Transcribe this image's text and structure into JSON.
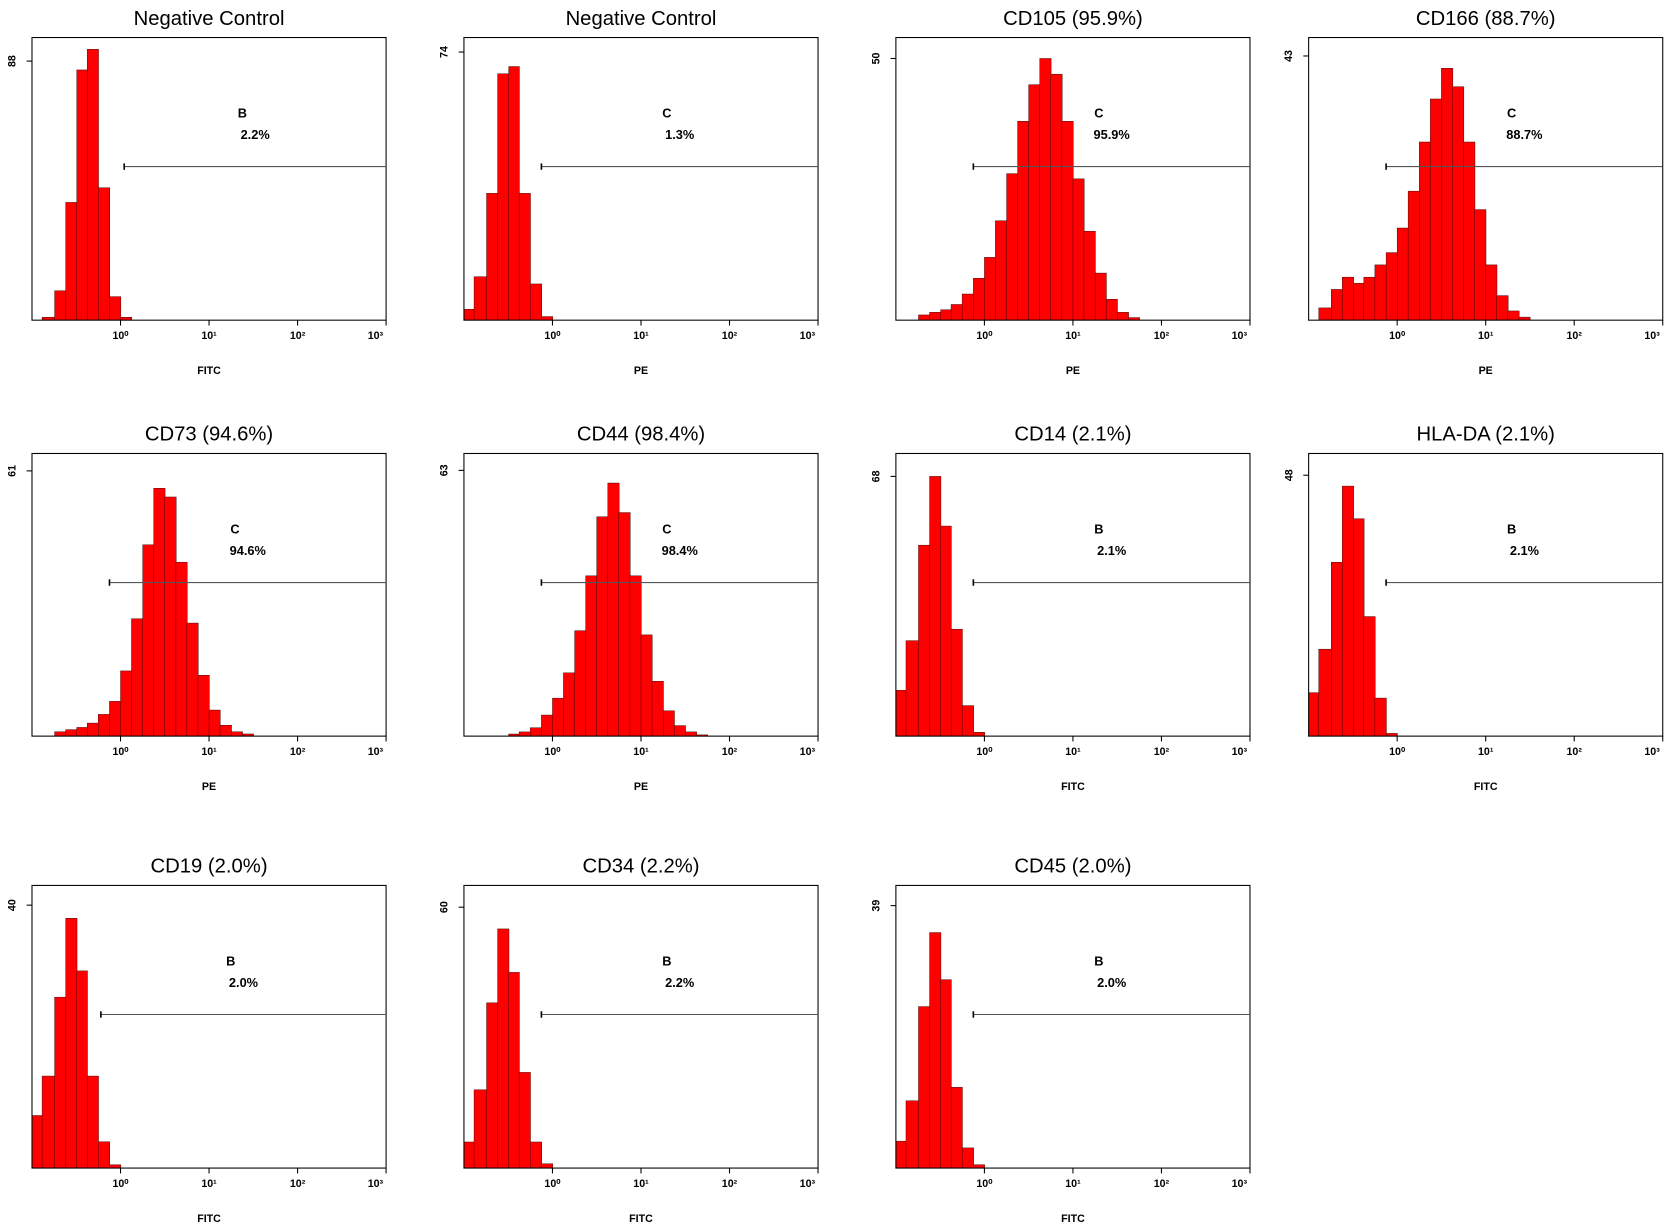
{
  "chart_data": [
    {
      "type": "histogram",
      "title": "Negative Control",
      "x_label": "FITC",
      "log_x": true,
      "color": "#ff0000",
      "xlim": [
        0.1,
        1000
      ],
      "xticks": [
        {
          "value": 1,
          "label": "10⁰"
        },
        {
          "value": 10,
          "label": "10¹"
        },
        {
          "value": 100,
          "label": "10²"
        },
        {
          "value": 1000,
          "label": "10³"
        }
      ],
      "ylim": [
        0,
        96
      ],
      "yticks": [
        88
      ],
      "bins": [
        0.13,
        0.18,
        0.24,
        0.32,
        0.42,
        0.56,
        0.75,
        1,
        1.33
      ],
      "values": [
        1,
        10,
        40,
        85,
        92,
        45,
        8,
        1
      ],
      "gate": {
        "name": "B",
        "start": 1.1,
        "value": 2.2,
        "label": "2.2%"
      }
    },
    {
      "type": "histogram",
      "title": "Negative Control",
      "x_label": "PE",
      "log_x": true,
      "color": "#ff0000",
      "xlim": [
        0.1,
        1000
      ],
      "xticks": [
        {
          "value": 1,
          "label": "10⁰"
        },
        {
          "value": 10,
          "label": "10¹"
        },
        {
          "value": 100,
          "label": "10²"
        },
        {
          "value": 1000,
          "label": "10³"
        }
      ],
      "ylim": [
        0,
        78
      ],
      "yticks": [
        74
      ],
      "bins": [
        0.1,
        0.13,
        0.18,
        0.24,
        0.32,
        0.42,
        0.56,
        0.75,
        1
      ],
      "values": [
        3,
        12,
        35,
        68,
        70,
        35,
        10,
        1
      ],
      "gate": {
        "name": "C",
        "start": 0.75,
        "value": 1.3,
        "label": "1.3%"
      }
    },
    {
      "type": "histogram",
      "title": "CD105 (95.9%)",
      "x_label": "PE",
      "log_x": true,
      "color": "#ff0000",
      "xlim": [
        0.1,
        1000
      ],
      "xticks": [
        {
          "value": 1,
          "label": "10⁰"
        },
        {
          "value": 10,
          "label": "10¹"
        },
        {
          "value": 100,
          "label": "10²"
        },
        {
          "value": 1000,
          "label": "10³"
        }
      ],
      "ylim": [
        0,
        54
      ],
      "yticks": [
        50
      ],
      "bins": [
        0.18,
        0.24,
        0.32,
        0.42,
        0.56,
        0.75,
        1,
        1.33,
        1.78,
        2.37,
        3.16,
        4.22,
        5.62,
        7.5,
        10,
        13.3,
        17.8,
        23.7,
        31.6,
        42.2,
        56.2
      ],
      "values": [
        1,
        1.5,
        2,
        3,
        5,
        8,
        12,
        19,
        28,
        38,
        45,
        50,
        47,
        38,
        27,
        17,
        9,
        4,
        1.5,
        0.5
      ],
      "gate": {
        "name": "C",
        "start": 0.75,
        "value": 95.9,
        "label": "95.9%"
      }
    },
    {
      "type": "histogram",
      "title": "CD166 (88.7%)",
      "x_label": "PE",
      "log_x": true,
      "color": "#ff0000",
      "xlim": [
        0.1,
        1000
      ],
      "xticks": [
        {
          "value": 1,
          "label": "10⁰"
        },
        {
          "value": 10,
          "label": "10¹"
        },
        {
          "value": 100,
          "label": "10²"
        },
        {
          "value": 1000,
          "label": "10³"
        }
      ],
      "ylim": [
        0,
        46
      ],
      "yticks": [
        43
      ],
      "bins": [
        0.13,
        0.18,
        0.24,
        0.32,
        0.42,
        0.56,
        0.75,
        1,
        1.33,
        1.78,
        2.37,
        3.16,
        4.22,
        5.62,
        7.5,
        10,
        13.3,
        17.8,
        23.7,
        31.6
      ],
      "values": [
        2,
        5,
        7,
        6,
        7,
        9,
        11,
        15,
        21,
        29,
        36,
        41,
        38,
        29,
        18,
        9,
        4,
        1.5,
        0.5
      ],
      "gate": {
        "name": "C",
        "start": 0.75,
        "value": 88.7,
        "label": "88.7%"
      }
    },
    {
      "type": "histogram",
      "title": "CD73 (94.6%)",
      "x_label": "PE",
      "log_x": true,
      "color": "#ff0000",
      "xlim": [
        0.1,
        1000
      ],
      "xticks": [
        {
          "value": 1,
          "label": "10⁰"
        },
        {
          "value": 10,
          "label": "10¹"
        },
        {
          "value": 100,
          "label": "10²"
        },
        {
          "value": 1000,
          "label": "10³"
        }
      ],
      "ylim": [
        0,
        65
      ],
      "yticks": [
        61
      ],
      "bins": [
        0.18,
        0.24,
        0.32,
        0.42,
        0.56,
        0.75,
        1,
        1.33,
        1.78,
        2.37,
        3.16,
        4.22,
        5.62,
        7.5,
        10,
        13.3,
        17.8,
        23.7,
        31.6
      ],
      "values": [
        1,
        1.5,
        2,
        3,
        5,
        8,
        15,
        27,
        44,
        57,
        55,
        40,
        26,
        14,
        6,
        2.5,
        1,
        0.5
      ],
      "gate": {
        "name": "C",
        "start": 0.75,
        "value": 94.6,
        "label": "94.6%"
      }
    },
    {
      "type": "histogram",
      "title": "CD44 (98.4%)",
      "x_label": "PE",
      "log_x": true,
      "color": "#ff0000",
      "xlim": [
        0.1,
        1000
      ],
      "xticks": [
        {
          "value": 1,
          "label": "10⁰"
        },
        {
          "value": 10,
          "label": "10¹"
        },
        {
          "value": 100,
          "label": "10²"
        },
        {
          "value": 1000,
          "label": "10³"
        }
      ],
      "ylim": [
        0,
        67
      ],
      "yticks": [
        63
      ],
      "bins": [
        0.32,
        0.42,
        0.56,
        0.75,
        1,
        1.33,
        1.78,
        2.37,
        3.16,
        4.22,
        5.62,
        7.5,
        10,
        13.3,
        17.8,
        23.7,
        31.6,
        42.2,
        56.2
      ],
      "values": [
        0.5,
        1,
        2,
        5,
        9,
        15,
        25,
        38,
        52,
        60,
        53,
        38,
        24,
        13,
        6,
        2.5,
        1,
        0.3
      ],
      "gate": {
        "name": "C",
        "start": 0.75,
        "value": 98.4,
        "label": "98.4%"
      }
    },
    {
      "type": "histogram",
      "title": "CD14 (2.1%)",
      "x_label": "FITC",
      "log_x": true,
      "color": "#ff0000",
      "xlim": [
        0.1,
        1000
      ],
      "xticks": [
        {
          "value": 1,
          "label": "10⁰"
        },
        {
          "value": 10,
          "label": "10¹"
        },
        {
          "value": 100,
          "label": "10²"
        },
        {
          "value": 1000,
          "label": "10³"
        }
      ],
      "ylim": [
        0,
        74
      ],
      "yticks": [
        68
      ],
      "bins": [
        0.1,
        0.13,
        0.18,
        0.24,
        0.32,
        0.42,
        0.56,
        0.75,
        1
      ],
      "values": [
        12,
        25,
        50,
        68,
        55,
        28,
        8,
        1
      ],
      "gate": {
        "name": "B",
        "start": 0.75,
        "value": 2.1,
        "label": "2.1%"
      }
    },
    {
      "type": "histogram",
      "title": "HLA-DA (2.1%)",
      "x_label": "FITC",
      "log_x": true,
      "color": "#ff0000",
      "xlim": [
        0.1,
        1000
      ],
      "xticks": [
        {
          "value": 1,
          "label": "10⁰"
        },
        {
          "value": 10,
          "label": "10¹"
        },
        {
          "value": 100,
          "label": "10²"
        },
        {
          "value": 1000,
          "label": "10³"
        }
      ],
      "ylim": [
        0,
        52
      ],
      "yticks": [
        48
      ],
      "bins": [
        0.1,
        0.13,
        0.18,
        0.24,
        0.32,
        0.42,
        0.56,
        0.75,
        1
      ],
      "values": [
        8,
        16,
        32,
        46,
        40,
        22,
        7,
        0.5
      ],
      "gate": {
        "name": "B",
        "start": 0.75,
        "value": 2.1,
        "label": "2.1%"
      }
    },
    {
      "type": "histogram",
      "title": "CD19 (2.0%)",
      "x_label": "FITC",
      "log_x": true,
      "color": "#ff0000",
      "xlim": [
        0.1,
        1000
      ],
      "xticks": [
        {
          "value": 1,
          "label": "10⁰"
        },
        {
          "value": 10,
          "label": "10¹"
        },
        {
          "value": 100,
          "label": "10²"
        },
        {
          "value": 1000,
          "label": "10³"
        }
      ],
      "ylim": [
        0,
        43
      ],
      "yticks": [
        40
      ],
      "bins": [
        0.1,
        0.13,
        0.18,
        0.24,
        0.32,
        0.42,
        0.56,
        0.75,
        1
      ],
      "values": [
        8,
        14,
        26,
        38,
        30,
        14,
        4,
        0.5
      ],
      "gate": {
        "name": "B",
        "start": 0.6,
        "value": 2.0,
        "label": "2.0%"
      }
    },
    {
      "type": "histogram",
      "title": "CD34 (2.2%)",
      "x_label": "FITC",
      "log_x": true,
      "color": "#ff0000",
      "xlim": [
        0.1,
        1000
      ],
      "xticks": [
        {
          "value": 1,
          "label": "10⁰"
        },
        {
          "value": 10,
          "label": "10¹"
        },
        {
          "value": 100,
          "label": "10²"
        },
        {
          "value": 1000,
          "label": "10³"
        }
      ],
      "ylim": [
        0,
        65
      ],
      "yticks": [
        60
      ],
      "bins": [
        0.1,
        0.13,
        0.18,
        0.24,
        0.32,
        0.42,
        0.56,
        0.75,
        1
      ],
      "values": [
        6,
        18,
        38,
        55,
        45,
        22,
        6,
        1
      ],
      "gate": {
        "name": "B",
        "start": 0.75,
        "value": 2.2,
        "label": "2.2%"
      }
    },
    {
      "type": "histogram",
      "title": "CD45 (2.0%)",
      "x_label": "FITC",
      "log_x": true,
      "color": "#ff0000",
      "xlim": [
        0.1,
        1000
      ],
      "xticks": [
        {
          "value": 1,
          "label": "10⁰"
        },
        {
          "value": 10,
          "label": "10¹"
        },
        {
          "value": 100,
          "label": "10²"
        },
        {
          "value": 1000,
          "label": "10³"
        }
      ],
      "ylim": [
        0,
        42
      ],
      "yticks": [
        39
      ],
      "bins": [
        0.1,
        0.13,
        0.18,
        0.24,
        0.32,
        0.42,
        0.56,
        0.75,
        1
      ],
      "values": [
        4,
        10,
        24,
        35,
        28,
        12,
        3,
        0.5
      ],
      "gate": {
        "name": "B",
        "start": 0.75,
        "value": 2.0,
        "label": "2.0%"
      }
    }
  ]
}
